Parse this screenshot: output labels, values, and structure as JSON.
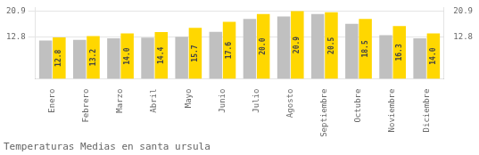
{
  "chart_data": {
    "type": "bar",
    "title": "Temperaturas Medias en santa ursula",
    "categories": [
      "Enero",
      "Febrero",
      "Marzo",
      "Abril",
      "Mayo",
      "Junio",
      "Julio",
      "Agosto",
      "Septiembre",
      "Octubre",
      "Noviembre",
      "Diciembre"
    ],
    "series": [
      {
        "color": "#C0C0C0",
        "values": [
          11.8,
          12.0,
          12.5,
          12.7,
          13.0,
          14.5,
          18.5,
          19.2,
          20.0,
          17.0,
          13.5,
          12.5
        ]
      },
      {
        "color": "#FFD700",
        "values": [
          12.8,
          13.2,
          14.0,
          14.4,
          15.7,
          17.6,
          20.0,
          20.9,
          20.5,
          18.5,
          16.3,
          14.0
        ],
        "data_labels": true,
        "value_labels": [
          "12.8",
          "13.2",
          "14.0",
          "14.4",
          "15.7",
          "17.6",
          "20.0",
          "20.9",
          "20.5",
          "18.5",
          "16.3",
          "14.0"
        ]
      }
    ],
    "ylim": [
      0,
      22.0
    ],
    "yticks": [
      12.8,
      20.9
    ],
    "y2lim": [
      0,
      22.0
    ],
    "y2ticks": [
      12.8,
      20.9
    ],
    "grid": true
  }
}
